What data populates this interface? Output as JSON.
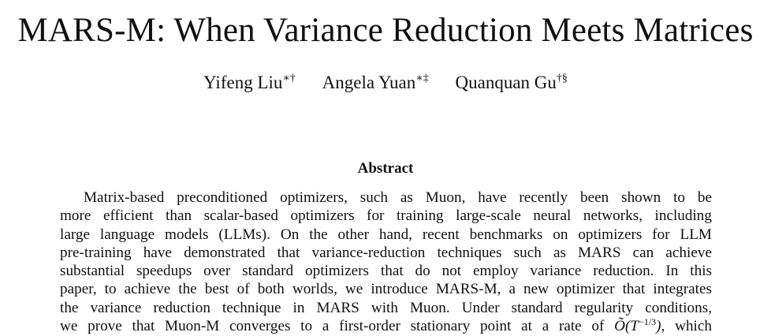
{
  "paper": {
    "title": "MARS-M: When Variance Reduction Meets Matrices",
    "authors": [
      {
        "name": "Yifeng Liu",
        "marks": "∗†"
      },
      {
        "name": "Angela Yuan",
        "marks": "∗‡"
      },
      {
        "name": "Quanquan Gu",
        "marks": "†§"
      }
    ],
    "abstract": {
      "heading": "Abstract",
      "lines": [
        "Matrix-based preconditioned optimizers, such as Muon, have recently been shown to be",
        "more efficient than scalar-based optimizers for training large-scale neural networks, including",
        "large language models (LLMs). On the other hand, recent benchmarks on optimizers for LLM",
        "pre-training have demonstrated that variance-reduction techniques such as MARS can achieve",
        "substantial speedups over standard optimizers that do not employ variance reduction. In this",
        "paper, to achieve the best of both worlds, we introduce MARS-M, a new optimizer that integrates",
        "the variance reduction technique in MARS with Muon. Under standard regularity conditions,"
      ],
      "last_line": {
        "before": "we prove that Muon-M converges to a first-order stationary point at a rate of ",
        "math_base": "Õ(T",
        "math_exp": "−1/3",
        "math_close": ")",
        "after": ", which"
      }
    }
  }
}
